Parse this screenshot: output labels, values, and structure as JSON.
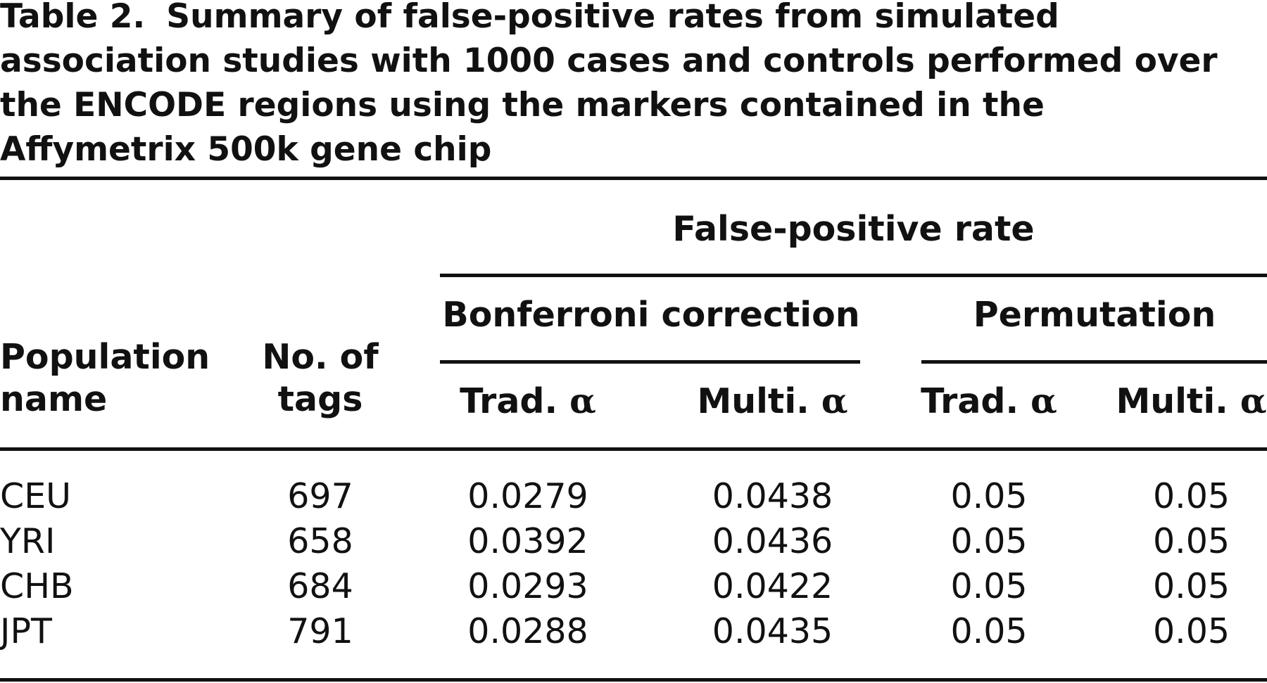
{
  "caption": {
    "label": "Table 2.",
    "text": "Summary of false-positive rates from simulated association studies with 1000 cases and controls performed over the ENCODE regions using the markers contained in the Affymetrix 500k gene chip"
  },
  "table": {
    "columns": {
      "population": "Population name",
      "tags": "No. of tags",
      "group": "False-positive rate",
      "bonferroni": "Bonferroni correction",
      "permutation": "Permutation",
      "trad": "Trad. α",
      "multi": "Multi. α"
    },
    "rows": [
      {
        "population": "CEU",
        "tags": "697",
        "bonf_trad": "0.0279",
        "bonf_multi": "0.0438",
        "perm_trad": "0.05",
        "perm_multi": "0.05"
      },
      {
        "population": "YRI",
        "tags": "658",
        "bonf_trad": "0.0392",
        "bonf_multi": "0.0436",
        "perm_trad": "0.05",
        "perm_multi": "0.05"
      },
      {
        "population": "CHB",
        "tags": "684",
        "bonf_trad": "0.0293",
        "bonf_multi": "0.0422",
        "perm_trad": "0.05",
        "perm_multi": "0.05"
      },
      {
        "population": "JPT",
        "tags": "791",
        "bonf_trad": "0.0288",
        "bonf_multi": "0.0435",
        "perm_trad": "0.05",
        "perm_multi": "0.05"
      }
    ]
  }
}
